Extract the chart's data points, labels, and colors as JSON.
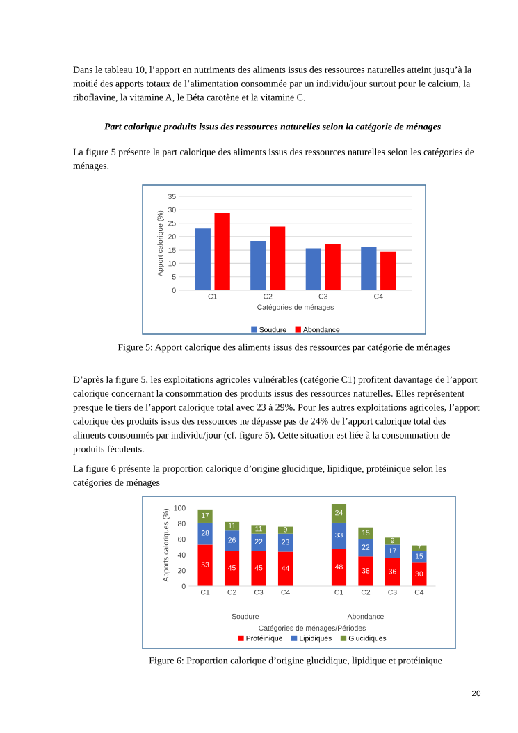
{
  "chart_data": [
    {
      "type": "bar",
      "title": "Figure 5: Apport calorique des aliments issus des ressources par catégorie de ménages",
      "annotations": [
        "Dans le tableau 10, l’apport en nutriments des aliments issus des ressources naturelles atteint jusqu’à la moitié des apports totaux de l’alimentation consommée par un individu/jour surtout pour le calcium, la riboflavine, la vitamine A, le Béta carotène et la vitamine C.",
        "Part calorique produits issus des ressources naturelles selon la catégorie de ménages",
        "La figure 5 présente la part calorique des aliments issus des ressources naturelles selon les catégories de ménages."
      ],
      "xlabel": "Catégories de ménages",
      "ylabel": "Apport calorique (%)",
      "categories": [
        "C1",
        "C2",
        "C3",
        "C4"
      ],
      "series": [
        {
          "name": "Soudure",
          "color": "#4472c4",
          "values": [
            23,
            18.4,
            15.7,
            16.1
          ]
        },
        {
          "name": "Abondance",
          "color": "#ff0000",
          "values": [
            28.8,
            23.7,
            17.3,
            14.3
          ]
        }
      ],
      "ylim": [
        0,
        35
      ],
      "yticks": [
        0,
        5,
        10,
        15,
        20,
        25,
        30,
        35
      ],
      "grid": "y",
      "legend": "bottom"
    },
    {
      "type": "bar",
      "title": "Figure 6: Proportion calorique d’origine glucidique, lipidique et protéinique",
      "annotations": [
        "D’après la figure 5, les exploitations agricoles vulnérables (catégorie C1) profitent davantage de l’apport calorique concernant la consommation des produits issus des ressources naturelles. Elles représentent presque le tiers de l’apport calorique total avec 23 à 29%. Pour les autres exploitations agricoles, l’apport calorique des produits issus des ressources ne dépasse pas de 24% de l’apport calorique total des aliments consommés par individu/jour (cf. figure 5). Cette situation est liée à la consommation de produits féculents.",
        "La figure 6 présente la proportion calorique d’origine glucidique, lipidique, protéinique selon les catégories de ménages",
        "Soudure",
        "Abondance",
        "20"
      ],
      "xlabel": "Catégories de ménages/Périodes",
      "ylabel": "Apports caloriques (%)",
      "categories": [
        "C1",
        "C2",
        "C3",
        "C4",
        null,
        "C1",
        "C2",
        "C3",
        "C4"
      ],
      "stacked": true,
      "series": [
        {
          "name": "Protéinique",
          "color": "#ff0000",
          "values": [
            53,
            45,
            45,
            44,
            null,
            48,
            38,
            36,
            30
          ]
        },
        {
          "name": "Lipidiques",
          "color": "#4472c4",
          "values": [
            28,
            26,
            22,
            23,
            null,
            33,
            22,
            17,
            15
          ]
        },
        {
          "name": "Glucidiques",
          "color": "#77933c",
          "values": [
            17,
            11,
            11,
            9,
            null,
            24,
            15,
            9,
            7
          ]
        }
      ],
      "data_labels": true,
      "ylim": [
        0,
        105
      ],
      "yticks": [
        0,
        20,
        40,
        60,
        80,
        100
      ],
      "grid": false,
      "legend": "bottom"
    }
  ]
}
